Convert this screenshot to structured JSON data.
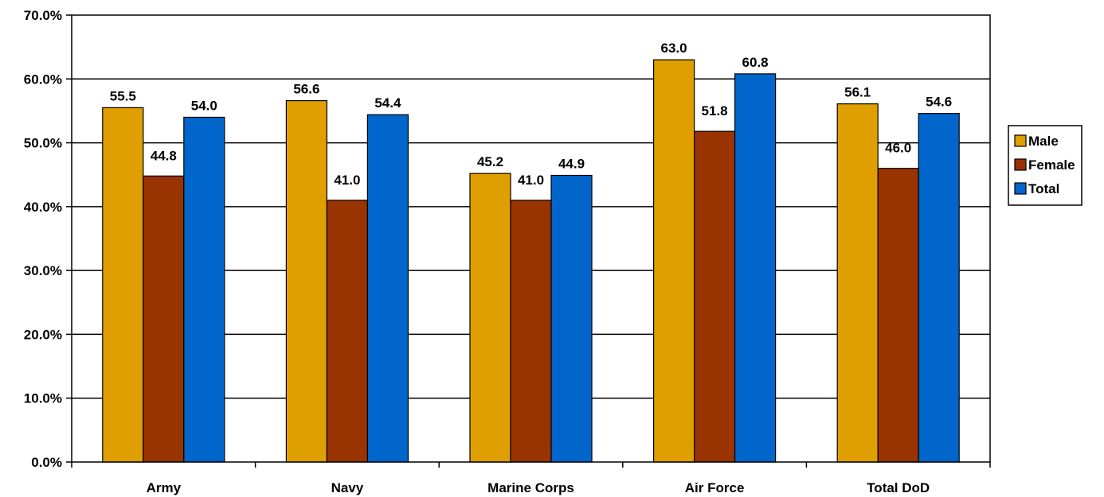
{
  "chart_data": {
    "type": "bar",
    "title": "",
    "xlabel": "",
    "ylabel": "",
    "categories": [
      "Army",
      "Navy",
      "Marine Corps",
      "Air Force",
      "Total DoD"
    ],
    "series": [
      {
        "name": "Male",
        "color": "#E09F00",
        "values": [
          55.5,
          56.6,
          45.2,
          63.0,
          56.1
        ],
        "labels": [
          "55.5",
          "56.6",
          "45.2",
          "63.0",
          "56.1"
        ]
      },
      {
        "name": "Female",
        "color": "#993300",
        "values": [
          44.8,
          41.0,
          41.0,
          51.8,
          46.0
        ],
        "labels": [
          "44.8",
          "41.0",
          "41.0",
          "51.8",
          "46.0"
        ]
      },
      {
        "name": "Total",
        "color": "#0066CC",
        "values": [
          54.0,
          54.4,
          44.9,
          60.8,
          54.6
        ],
        "labels": [
          "54.0",
          "54.4",
          "44.9",
          "60.8",
          "54.6"
        ]
      }
    ],
    "ylim": [
      0,
      70
    ],
    "yticks": [
      0,
      10,
      20,
      30,
      40,
      50,
      60,
      70
    ],
    "ytick_labels": [
      "0.0%",
      "10.0%",
      "20.0%",
      "30.0%",
      "40.0%",
      "50.0%",
      "60.0%",
      "70.0%"
    ],
    "grid": true,
    "legend_position": "right"
  }
}
